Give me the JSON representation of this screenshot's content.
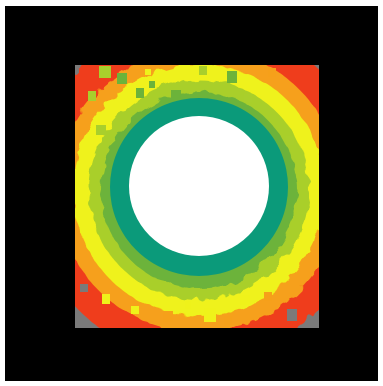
{
  "image": {
    "colors": {
      "page_background": "#ffffff",
      "frame_background": "#000000",
      "corner_gray": "#7a7a7a",
      "center_white": "#ffffff",
      "ring_teal": "#0b9a7a",
      "ring_green": "#6cb33a",
      "ring_light_green": "#a9cf2c",
      "ring_yellow": "#eff21a",
      "ring_orange": "#f6a01a",
      "ring_red": "#ef3e1c"
    }
  }
}
